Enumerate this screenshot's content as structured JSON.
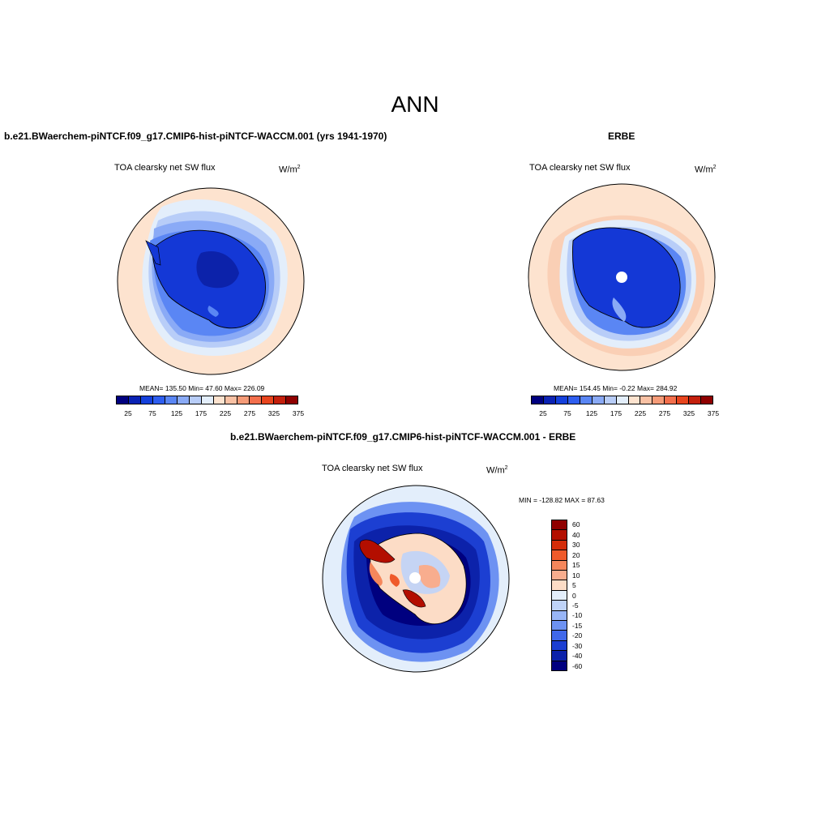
{
  "figure_title": "ANN",
  "panels": [
    {
      "title": "b.e21.BWaerchem-piNTCF.f09_g17.CMIP6-hist-piNTCF-WACCM.001 (yrs 1941-1970)",
      "variable": "TOA clearsky net SW flux",
      "units_base": "W/m",
      "units_exp": "2",
      "stats": "MEAN= 135.50  Min=  47.60  Max= 226.09",
      "colorbar_ticks": [
        "25",
        "75",
        "125",
        "175",
        "225",
        "275",
        "325",
        "375"
      ]
    },
    {
      "title": "ERBE",
      "variable": "TOA clearsky net SW flux",
      "units_base": "W/m",
      "units_exp": "2",
      "stats": "MEAN= 154.45  Min=  -0.22  Max= 284.92",
      "colorbar_ticks": [
        "25",
        "75",
        "125",
        "175",
        "225",
        "275",
        "325",
        "375"
      ]
    },
    {
      "title": "b.e21.BWaerchem-piNTCF.f09_g17.CMIP6-hist-piNTCF-WACCM.001 - ERBE",
      "variable": "TOA clearsky net SW flux",
      "units_base": "W/m",
      "units_exp": "2",
      "stats": "MIN = -128.82 MAX =  87.63",
      "colorbar_levels": [
        "60",
        "40",
        "30",
        "20",
        "15",
        "10",
        "5",
        "0",
        "-5",
        "-10",
        "-15",
        "-20",
        "-30",
        "-40",
        "-60"
      ]
    }
  ],
  "colors": {
    "abs_palette": [
      "#00007f",
      "#0a22b4",
      "#1440dc",
      "#2e5ef0",
      "#5a86f4",
      "#8aaaf6",
      "#b8cdf8",
      "#e3eefb",
      "#fde3cf",
      "#f9c1a4",
      "#f59b78",
      "#f36f4c",
      "#e8451e",
      "#c4200c",
      "#8f0000"
    ],
    "diff_palette": [
      "#8f0000",
      "#b30e00",
      "#d42d0a",
      "#ef5a2a",
      "#f5875c",
      "#f8ad8e",
      "#fcdcc6",
      "#e3eefb",
      "#bfd3f8",
      "#98b5f6",
      "#6d92f2",
      "#4068ea",
      "#1c3fd2",
      "#0c22aa",
      "#00007f"
    ],
    "ocean_model": "#fde3cf",
    "land_model": "#1438d6"
  }
}
